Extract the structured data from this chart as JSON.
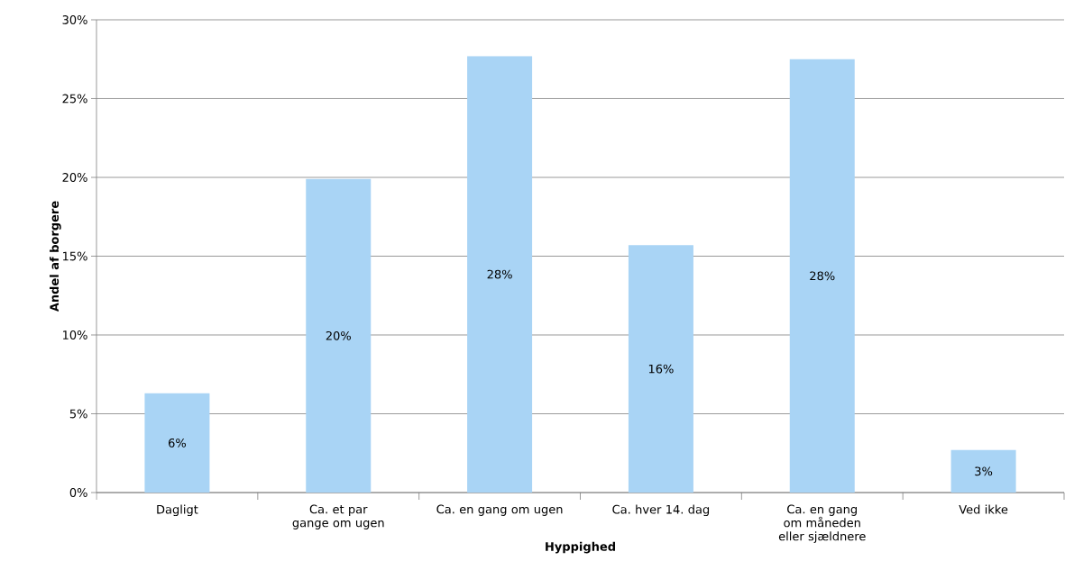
{
  "chart_data": {
    "type": "bar",
    "xlabel": "Hyppighed",
    "ylabel": "Andel af borgere",
    "categories": [
      "Dagligt",
      "Ca. et par gange om ugen",
      "Ca. en gang om ugen",
      "Ca. hver 14. dag",
      "Ca. en gang om måneden eller sjældnere",
      "Ved ikke"
    ],
    "values": [
      6.3,
      19.9,
      27.7,
      15.7,
      27.5,
      2.7
    ],
    "value_labels": [
      "6%",
      "20%",
      "28%",
      "16%",
      "28%",
      "3%"
    ],
    "color": "#a9d4f5",
    "ylim": [
      0,
      30
    ],
    "yticks": [
      {
        "value": 0,
        "label": "0%"
      },
      {
        "value": 5,
        "label": "5%"
      },
      {
        "value": 10,
        "label": "10%"
      },
      {
        "value": 15,
        "label": "15%"
      },
      {
        "value": 20,
        "label": "20%"
      },
      {
        "value": 25,
        "label": "25%"
      },
      {
        "value": 30,
        "label": "30%"
      }
    ],
    "grid": "y"
  }
}
